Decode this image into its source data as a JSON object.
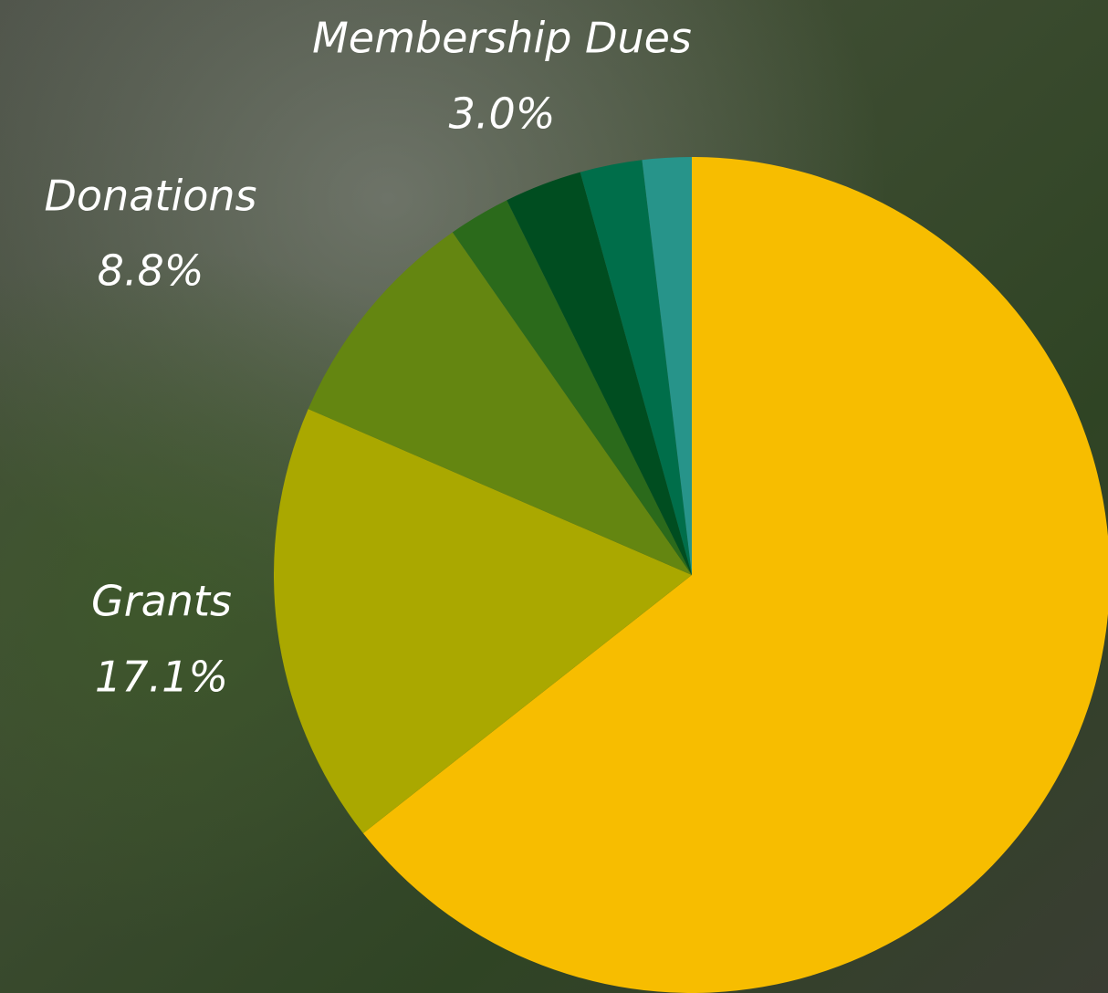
{
  "chart_data": {
    "type": "pie",
    "categories": [
      null,
      "Grants",
      "Donations",
      null,
      "Membership Dues",
      null,
      null
    ],
    "values": [
      64.4,
      17.1,
      8.8,
      2.4,
      3.0,
      2.4,
      1.9
    ],
    "value_labels": [
      null,
      "17.1%",
      "8.8%",
      null,
      "3.0%",
      null,
      null
    ],
    "colors": [
      "#f7bd00",
      "#aaa800",
      "#648611",
      "#2b6a1b",
      "#004d20",
      "#006e4a",
      "#27948a"
    ]
  }
}
